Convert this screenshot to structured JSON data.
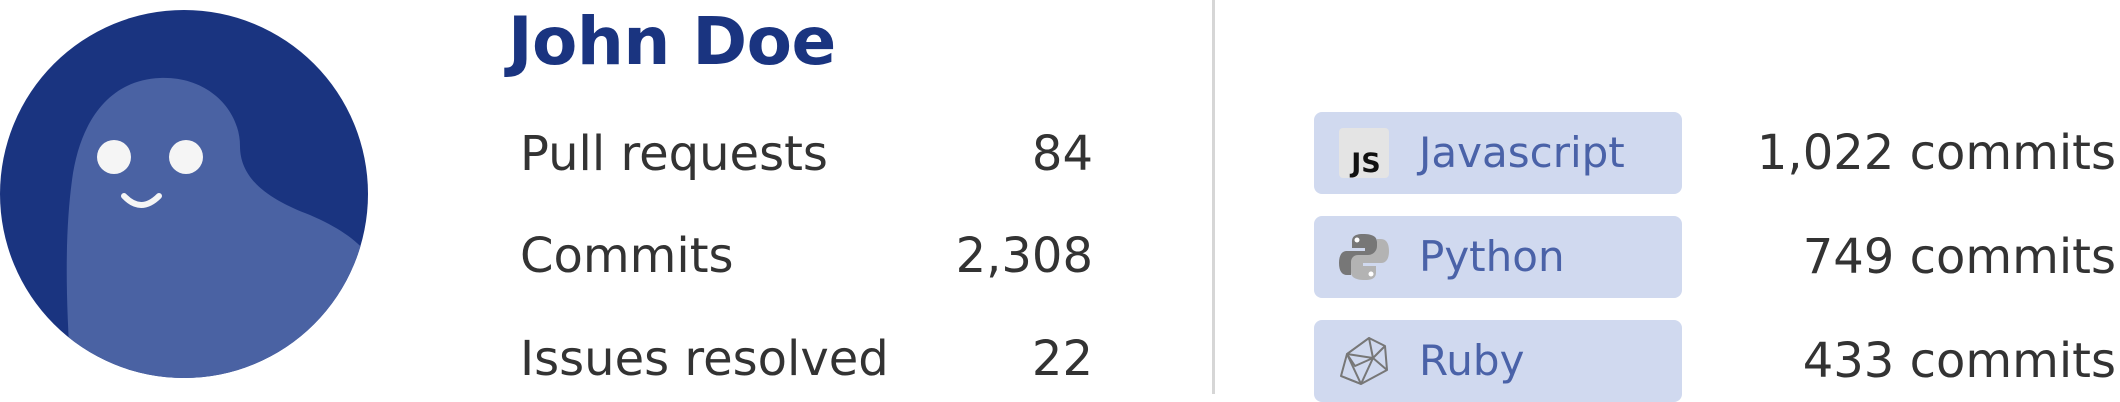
{
  "profile": {
    "name": "John Doe"
  },
  "stats": [
    {
      "label": "Pull requests",
      "value": "84"
    },
    {
      "label": "Commits",
      "value": "2,308"
    },
    {
      "label": "Issues resolved",
      "value": "22"
    }
  ],
  "languages": [
    {
      "name": "Javascript",
      "icon": "javascript-icon",
      "icon_text": "JS",
      "commits": "1,022 commits"
    },
    {
      "name": "Python",
      "icon": "python-icon",
      "commits": "749 commits"
    },
    {
      "name": "Ruby",
      "icon": "ruby-icon",
      "commits": "433 commits"
    }
  ],
  "colors": {
    "accent": "#1a3480",
    "avatar_bg": "#1a3480",
    "avatar_ghost": "#4a62a3",
    "chip_bg": "#d0d9ef",
    "chip_text": "#4a62a8",
    "text": "#333333",
    "divider": "#d6d6d6"
  }
}
